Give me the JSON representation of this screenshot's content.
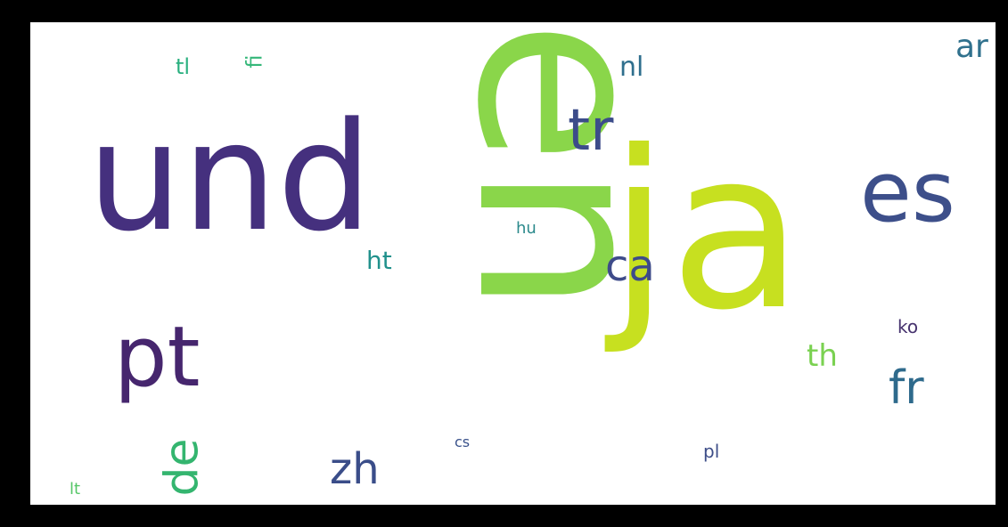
{
  "words": [
    {
      "text": "en",
      "color": "#8ad64a",
      "vertical": true
    },
    {
      "text": "und",
      "color": "#45307e",
      "vertical": false
    },
    {
      "text": "ja",
      "color": "#c7e020",
      "vertical": false
    },
    {
      "text": "es",
      "color": "#3d4f8a",
      "vertical": false
    },
    {
      "text": "pt",
      "color": "#46266e",
      "vertical": false
    },
    {
      "text": "tr",
      "color": "#3c4c8a",
      "vertical": false
    },
    {
      "text": "ca",
      "color": "#3e4b8a",
      "vertical": false
    },
    {
      "text": "fr",
      "color": "#2e6a8c",
      "vertical": false
    },
    {
      "text": "zh",
      "color": "#3a4d89",
      "vertical": false
    },
    {
      "text": "de",
      "color": "#34b56f",
      "vertical": true
    },
    {
      "text": "ar",
      "color": "#30718d",
      "vertical": false
    },
    {
      "text": "nl",
      "color": "#2f6f8d",
      "vertical": false
    },
    {
      "text": "th",
      "color": "#7ad151",
      "vertical": false
    },
    {
      "text": "ht",
      "color": "#21918c",
      "vertical": false
    },
    {
      "text": "tl",
      "color": "#2ab07f",
      "vertical": false
    },
    {
      "text": "fi",
      "color": "#35b779",
      "vertical": true
    },
    {
      "text": "hu",
      "color": "#2c8a8c",
      "vertical": false
    },
    {
      "text": "ko",
      "color": "#46326e",
      "vertical": false
    },
    {
      "text": "pl",
      "color": "#3d4d88",
      "vertical": false
    },
    {
      "text": "cs",
      "color": "#3a528b",
      "vertical": false
    },
    {
      "text": "lt",
      "color": "#55c667",
      "vertical": false
    }
  ]
}
